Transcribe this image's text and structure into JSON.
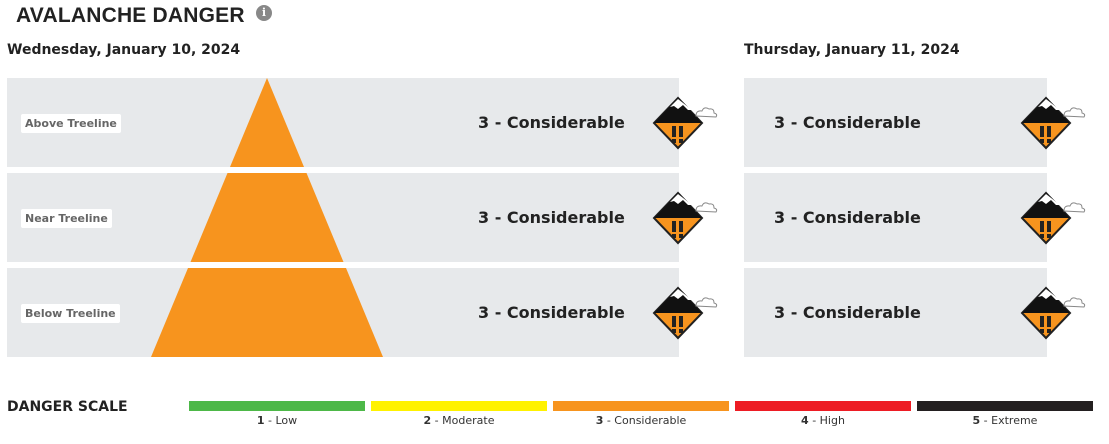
{
  "header": {
    "title": "AVALANCHE DANGER",
    "info_icon": "info-icon"
  },
  "days": [
    {
      "date": "Wednesday, January 10, 2024",
      "rows": [
        {
          "elevation": "Above Treeline",
          "rating": "3 - Considerable"
        },
        {
          "elevation": "Near Treeline",
          "rating": "3 - Considerable"
        },
        {
          "elevation": "Below Treeline",
          "rating": "3 - Considerable"
        }
      ]
    },
    {
      "date": "Thursday, January 11, 2024",
      "rows": [
        {
          "rating": "3 - Considerable"
        },
        {
          "rating": "3 - Considerable"
        },
        {
          "rating": "3 - Considerable"
        }
      ]
    }
  ],
  "pyramid_color": "#f7941e",
  "scale": {
    "label": "DANGER SCALE",
    "levels": [
      {
        "num": "1",
        "name": " - Low",
        "color": "#4db848"
      },
      {
        "num": "2",
        "name": " - Moderate",
        "color": "#fff200"
      },
      {
        "num": "3",
        "name": " - Considerable",
        "color": "#f7941e"
      },
      {
        "num": "4",
        "name": " - High",
        "color": "#ed1c24"
      },
      {
        "num": "5",
        "name": " - Extreme",
        "color": "#231f20"
      }
    ]
  }
}
